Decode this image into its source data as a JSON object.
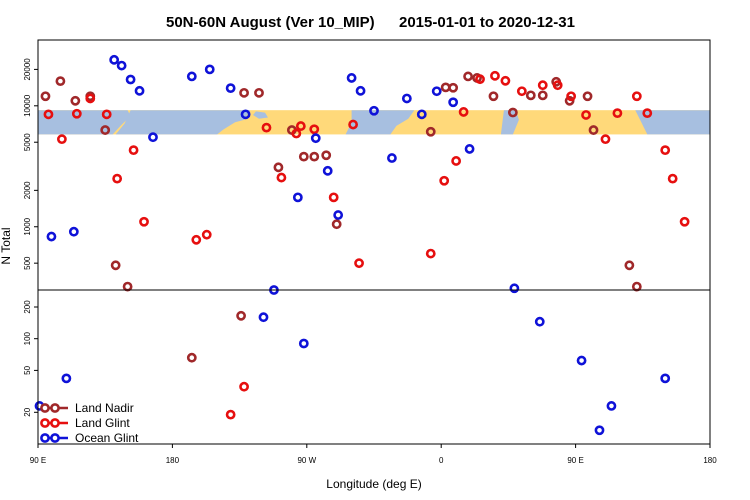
{
  "chart_data": {
    "type": "scatter",
    "title_region": "50N-60N August (Ver 10_MIP)",
    "title_dates": "2015-01-01 to 2020-12-31",
    "xlabel": "Longitude (deg E)",
    "ylabel": "N Total",
    "x_ticks": [
      {
        "value": 90,
        "label": "90 E"
      },
      {
        "value": 180,
        "label": "180"
      },
      {
        "value": 270,
        "label": "90 W"
      },
      {
        "value": 360,
        "label": "0"
      },
      {
        "value": 450,
        "label": "90 E"
      },
      {
        "value": 540,
        "label": "180"
      }
    ],
    "xlim": [
      90,
      540
    ],
    "top_panel": {
      "scale": "log",
      "ylim": [
        300,
        35000
      ],
      "y_ticks": [
        500,
        1000,
        2000,
        5000,
        10000,
        20000
      ],
      "map_band": {
        "land_color": "#ffd97a",
        "ocean_color": "#a7bfe0",
        "ylim": [
          5800,
          9200
        ]
      }
    },
    "bottom_panel": {
      "scale": "log",
      "ylim": [
        10,
        290
      ],
      "y_ticks": [
        20,
        50,
        100,
        200
      ]
    },
    "series": [
      {
        "name": "Land Nadir",
        "color": "#a0282a",
        "top_points": [
          [
            95,
            12000
          ],
          [
            105,
            16000
          ],
          [
            115,
            11000
          ],
          [
            125,
            12000
          ],
          [
            135,
            6300
          ],
          [
            142,
            480
          ],
          [
            150,
            320
          ],
          [
            228,
            12800
          ],
          [
            238,
            12800
          ],
          [
            251,
            3100
          ],
          [
            260,
            6300
          ],
          [
            268,
            3800
          ],
          [
            275,
            3800
          ],
          [
            283,
            3900
          ],
          [
            290,
            1050
          ],
          [
            353,
            6100
          ],
          [
            363,
            14200
          ],
          [
            368,
            14100
          ],
          [
            378,
            17500
          ],
          [
            384,
            17000
          ],
          [
            395,
            12000
          ],
          [
            408,
            8800
          ],
          [
            420,
            12200
          ],
          [
            428,
            12200
          ],
          [
            437,
            15800
          ],
          [
            446,
            11000
          ],
          [
            458,
            12000
          ],
          [
            462,
            6300
          ],
          [
            486,
            480
          ],
          [
            491,
            320
          ]
        ],
        "bottom_points": [
          [
            193,
            66
          ],
          [
            226,
            165
          ]
        ]
      },
      {
        "name": "Land Glint",
        "color": "#e60f0f",
        "top_points": [
          [
            97,
            8500
          ],
          [
            106,
            5300
          ],
          [
            116,
            8600
          ],
          [
            125,
            11500
          ],
          [
            136,
            8500
          ],
          [
            143,
            2500
          ],
          [
            154,
            4300
          ],
          [
            161,
            1100
          ],
          [
            196,
            780
          ],
          [
            203,
            860
          ],
          [
            243,
            6600
          ],
          [
            253,
            2550
          ],
          [
            263,
            5900
          ],
          [
            266,
            6800
          ],
          [
            275,
            6400
          ],
          [
            288,
            1750
          ],
          [
            301,
            7000
          ],
          [
            305,
            500
          ],
          [
            353,
            600
          ],
          [
            362,
            2400
          ],
          [
            370,
            3500
          ],
          [
            375,
            8900
          ],
          [
            386,
            16600
          ],
          [
            396,
            17700
          ],
          [
            403,
            16100
          ],
          [
            414,
            13200
          ],
          [
            428,
            14800
          ],
          [
            438,
            14800
          ],
          [
            447,
            12000
          ],
          [
            457,
            8400
          ],
          [
            470,
            5300
          ],
          [
            478,
            8700
          ],
          [
            491,
            12000
          ],
          [
            498,
            8700
          ],
          [
            510,
            4300
          ],
          [
            515,
            2500
          ],
          [
            523,
            1100
          ]
        ],
        "bottom_points": [
          [
            219,
            19
          ],
          [
            228,
            35
          ]
        ]
      },
      {
        "name": "Ocean Glint",
        "color": "#0f12d8",
        "top_points": [
          [
            99,
            830
          ],
          [
            114,
            910
          ],
          [
            141,
            24000
          ],
          [
            146,
            21500
          ],
          [
            152,
            16500
          ],
          [
            158,
            13300
          ],
          [
            167,
            5500
          ],
          [
            193,
            17500
          ],
          [
            205,
            20000
          ],
          [
            219,
            14000
          ],
          [
            229,
            8500
          ],
          [
            248,
            300
          ],
          [
            264,
            1750
          ],
          [
            276,
            5400
          ],
          [
            284,
            2900
          ],
          [
            291,
            1250
          ],
          [
            300,
            17000
          ],
          [
            306,
            13300
          ],
          [
            315,
            9100
          ],
          [
            327,
            3700
          ],
          [
            337,
            11500
          ],
          [
            347,
            8500
          ],
          [
            357,
            13200
          ],
          [
            368,
            10700
          ],
          [
            379,
            4400
          ],
          [
            409,
            310
          ]
        ],
        "bottom_points": [
          [
            91,
            23
          ],
          [
            109,
            42
          ],
          [
            241,
            160
          ],
          [
            268,
            90
          ],
          [
            426,
            145
          ],
          [
            454,
            62
          ],
          [
            466,
            13.5
          ],
          [
            474,
            23
          ],
          [
            510,
            42
          ]
        ]
      }
    ],
    "legend": {
      "position": "bottom-left",
      "entries": [
        "Land Nadir",
        "Land Glint",
        "Ocean Glint"
      ]
    }
  }
}
